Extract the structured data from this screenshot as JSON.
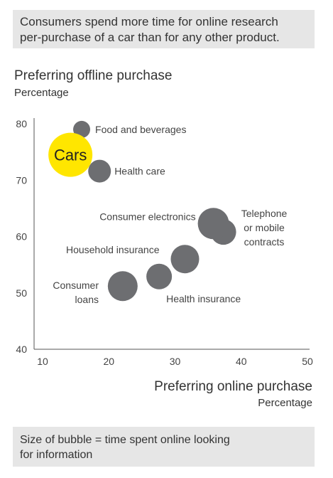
{
  "header": {
    "lines": [
      "Consumers spend more time for online research",
      "per-purchase of a car than for any other product."
    ]
  },
  "footer": {
    "lines": [
      "Size of bubble = time spent online looking",
      "for information"
    ]
  },
  "colors": {
    "bubble": "#6d6e71",
    "highlight": "#ffe600",
    "panel": "#e6e6e6",
    "axis": "#555555"
  },
  "chart_data": {
    "type": "scatter",
    "title": "",
    "ylabel": "Preferring offline purchase",
    "ylabel_unit": "Percentage",
    "xlabel": "Preferring online purchase",
    "xlabel_unit": "Percentage",
    "xlim": [
      10,
      50
    ],
    "ylim": [
      40,
      80
    ],
    "xticks": [
      10,
      20,
      30,
      40,
      50
    ],
    "yticks": [
      40,
      50,
      60,
      70,
      80
    ],
    "size_legend": "Size of bubble = time spent online looking for information",
    "points": [
      {
        "label": "Cars",
        "x": 14.2,
        "y": 74.5,
        "size": 31,
        "highlight": true
      },
      {
        "label": "Food and beverages",
        "x": 15.9,
        "y": 79.0,
        "size": 12
      },
      {
        "label": "Health care",
        "x": 18.6,
        "y": 71.6,
        "size": 16
      },
      {
        "label": "Telephone or mobile contracts",
        "x": 37.3,
        "y": 60.8,
        "size": 18
      },
      {
        "label": "Consumer electronics",
        "x": 35.8,
        "y": 62.3,
        "size": 22
      },
      {
        "label": "Household insurance",
        "x": 31.5,
        "y": 56.0,
        "size": 20
      },
      {
        "label": "Health insurance",
        "x": 27.6,
        "y": 52.9,
        "size": 18
      },
      {
        "label": "Consumer loans",
        "x": 22.1,
        "y": 51.2,
        "size": 21
      }
    ]
  }
}
